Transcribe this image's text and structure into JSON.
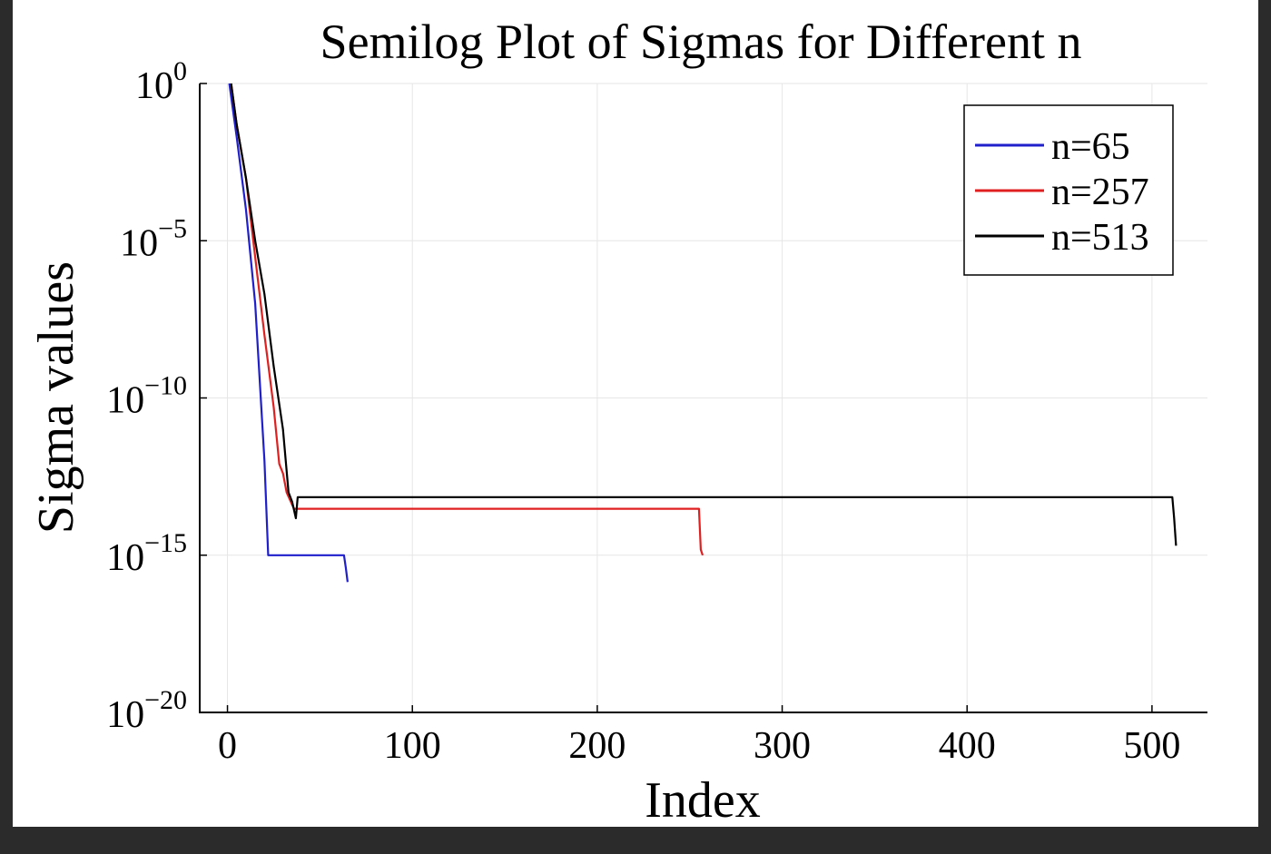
{
  "chart_data": {
    "type": "line",
    "title": "Semilog Plot of Sigmas for Different n",
    "xlabel": "Index",
    "ylabel": "Sigma values",
    "yscale": "log",
    "xlim": [
      -15,
      530
    ],
    "ylim": [
      1e-20,
      1
    ],
    "xticks": [
      0,
      100,
      200,
      300,
      400,
      500
    ],
    "xtick_labels": [
      "0",
      "100",
      "200",
      "300",
      "400",
      "500"
    ],
    "yticks": [
      1,
      1e-05,
      1e-10,
      1e-15,
      1e-20
    ],
    "ytick_labels": [
      {
        "base": "10",
        "exp": "0"
      },
      {
        "base": "10",
        "exp": "−5"
      },
      {
        "base": "10",
        "exp": "−10"
      },
      {
        "base": "10",
        "exp": "−15"
      },
      {
        "base": "10",
        "exp": "−20"
      }
    ],
    "grid": true,
    "legend_position": "top-right",
    "series": [
      {
        "name": "n=65",
        "color": "#1f1fcc",
        "points": [
          [
            1,
            1.0
          ],
          [
            5,
            0.02
          ],
          [
            10,
            0.0001
          ],
          [
            15,
            1e-07
          ],
          [
            20,
            1e-12
          ],
          [
            22,
            1e-15
          ],
          [
            63,
            1e-15
          ],
          [
            64,
            4e-16
          ],
          [
            65,
            1.4e-16
          ]
        ]
      },
      {
        "name": "n=257",
        "color": "#e02020",
        "points": [
          [
            2,
            1.0
          ],
          [
            5,
            0.05
          ],
          [
            10,
            0.001
          ],
          [
            15,
            3e-06
          ],
          [
            20,
            1e-08
          ],
          [
            25,
            5e-11
          ],
          [
            28,
            8e-13
          ],
          [
            30,
            4e-13
          ],
          [
            32,
            1e-13
          ],
          [
            35,
            4e-14
          ],
          [
            36,
            3e-14
          ],
          [
            255,
            3e-14
          ],
          [
            256,
            1.5e-15
          ],
          [
            257,
            1e-15
          ]
        ]
      },
      {
        "name": "n=513",
        "color": "#000000",
        "points": [
          [
            2,
            1.0
          ],
          [
            5,
            0.05
          ],
          [
            10,
            0.001
          ],
          [
            15,
            1e-05
          ],
          [
            20,
            2e-07
          ],
          [
            25,
            1e-09
          ],
          [
            30,
            1e-11
          ],
          [
            33,
            1e-13
          ],
          [
            35,
            5e-14
          ],
          [
            37,
            1.5e-14
          ],
          [
            38,
            7e-14
          ],
          [
            511,
            7e-14
          ],
          [
            512,
            1.5e-14
          ],
          [
            513,
            2e-15
          ]
        ]
      }
    ]
  }
}
